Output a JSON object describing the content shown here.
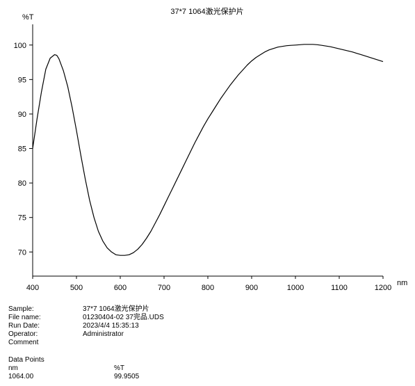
{
  "chart_data": {
    "type": "line",
    "title": "37*7 1064激光保护片",
    "xlabel": "nm",
    "ylabel": "%T",
    "xlim": [
      400,
      1200
    ],
    "ylim": [
      66.5,
      103
    ],
    "xticks": [
      400,
      500,
      600,
      700,
      800,
      900,
      1000,
      1100,
      1200
    ],
    "yticks": [
      70,
      75,
      80,
      85,
      90,
      95,
      100
    ],
    "grid": false,
    "series": [
      {
        "name": "",
        "color": "#000000",
        "x": [
          400,
          410,
          420,
          430,
          440,
          450,
          455,
          460,
          470,
          480,
          490,
          500,
          510,
          520,
          530,
          540,
          550,
          560,
          570,
          580,
          590,
          600,
          610,
          620,
          630,
          640,
          650,
          660,
          670,
          680,
          690,
          700,
          710,
          720,
          730,
          740,
          750,
          760,
          770,
          780,
          790,
          800,
          810,
          820,
          830,
          840,
          850,
          860,
          870,
          880,
          890,
          900,
          910,
          920,
          930,
          940,
          950,
          960,
          970,
          980,
          990,
          1000,
          1010,
          1020,
          1030,
          1040,
          1050,
          1060,
          1070,
          1080,
          1090,
          1100,
          1110,
          1120,
          1130,
          1140,
          1150,
          1160,
          1170,
          1180,
          1190,
          1200
        ],
        "y": [
          85.0,
          89.3,
          93.2,
          96.5,
          98.1,
          98.6,
          98.5,
          98.0,
          96.3,
          94.0,
          91.0,
          87.6,
          84.0,
          80.6,
          77.5,
          75.0,
          73.0,
          71.6,
          70.6,
          70.0,
          69.6,
          69.5,
          69.5,
          69.6,
          69.9,
          70.4,
          71.1,
          72.0,
          73.0,
          74.2,
          75.4,
          76.7,
          78.0,
          79.3,
          80.6,
          81.9,
          83.2,
          84.5,
          85.8,
          87.0,
          88.2,
          89.3,
          90.3,
          91.3,
          92.3,
          93.2,
          94.1,
          94.9,
          95.7,
          96.4,
          97.1,
          97.7,
          98.2,
          98.6,
          99.0,
          99.3,
          99.5,
          99.7,
          99.8,
          99.9,
          99.95,
          100.0,
          100.05,
          100.1,
          100.1,
          100.1,
          100.05,
          99.95,
          99.85,
          99.75,
          99.6,
          99.45,
          99.3,
          99.15,
          99.0,
          98.8,
          98.6,
          98.4,
          98.2,
          98.0,
          97.8,
          97.6
        ]
      }
    ]
  },
  "info": {
    "labels": [
      "Sample:",
      "File name:",
      "Run Date:",
      "Operator:",
      "Comment"
    ],
    "values": [
      "37*7 1064激光保护片",
      "01230404-02 37完品.UDS",
      "2023/4/4 15:35:13",
      "Administrator",
      ""
    ]
  },
  "datapoints": {
    "heading": "Data Points",
    "col1_header": "nm",
    "col2_header": "%T",
    "rows": [
      [
        "1064.00",
        "99.9505"
      ]
    ]
  }
}
